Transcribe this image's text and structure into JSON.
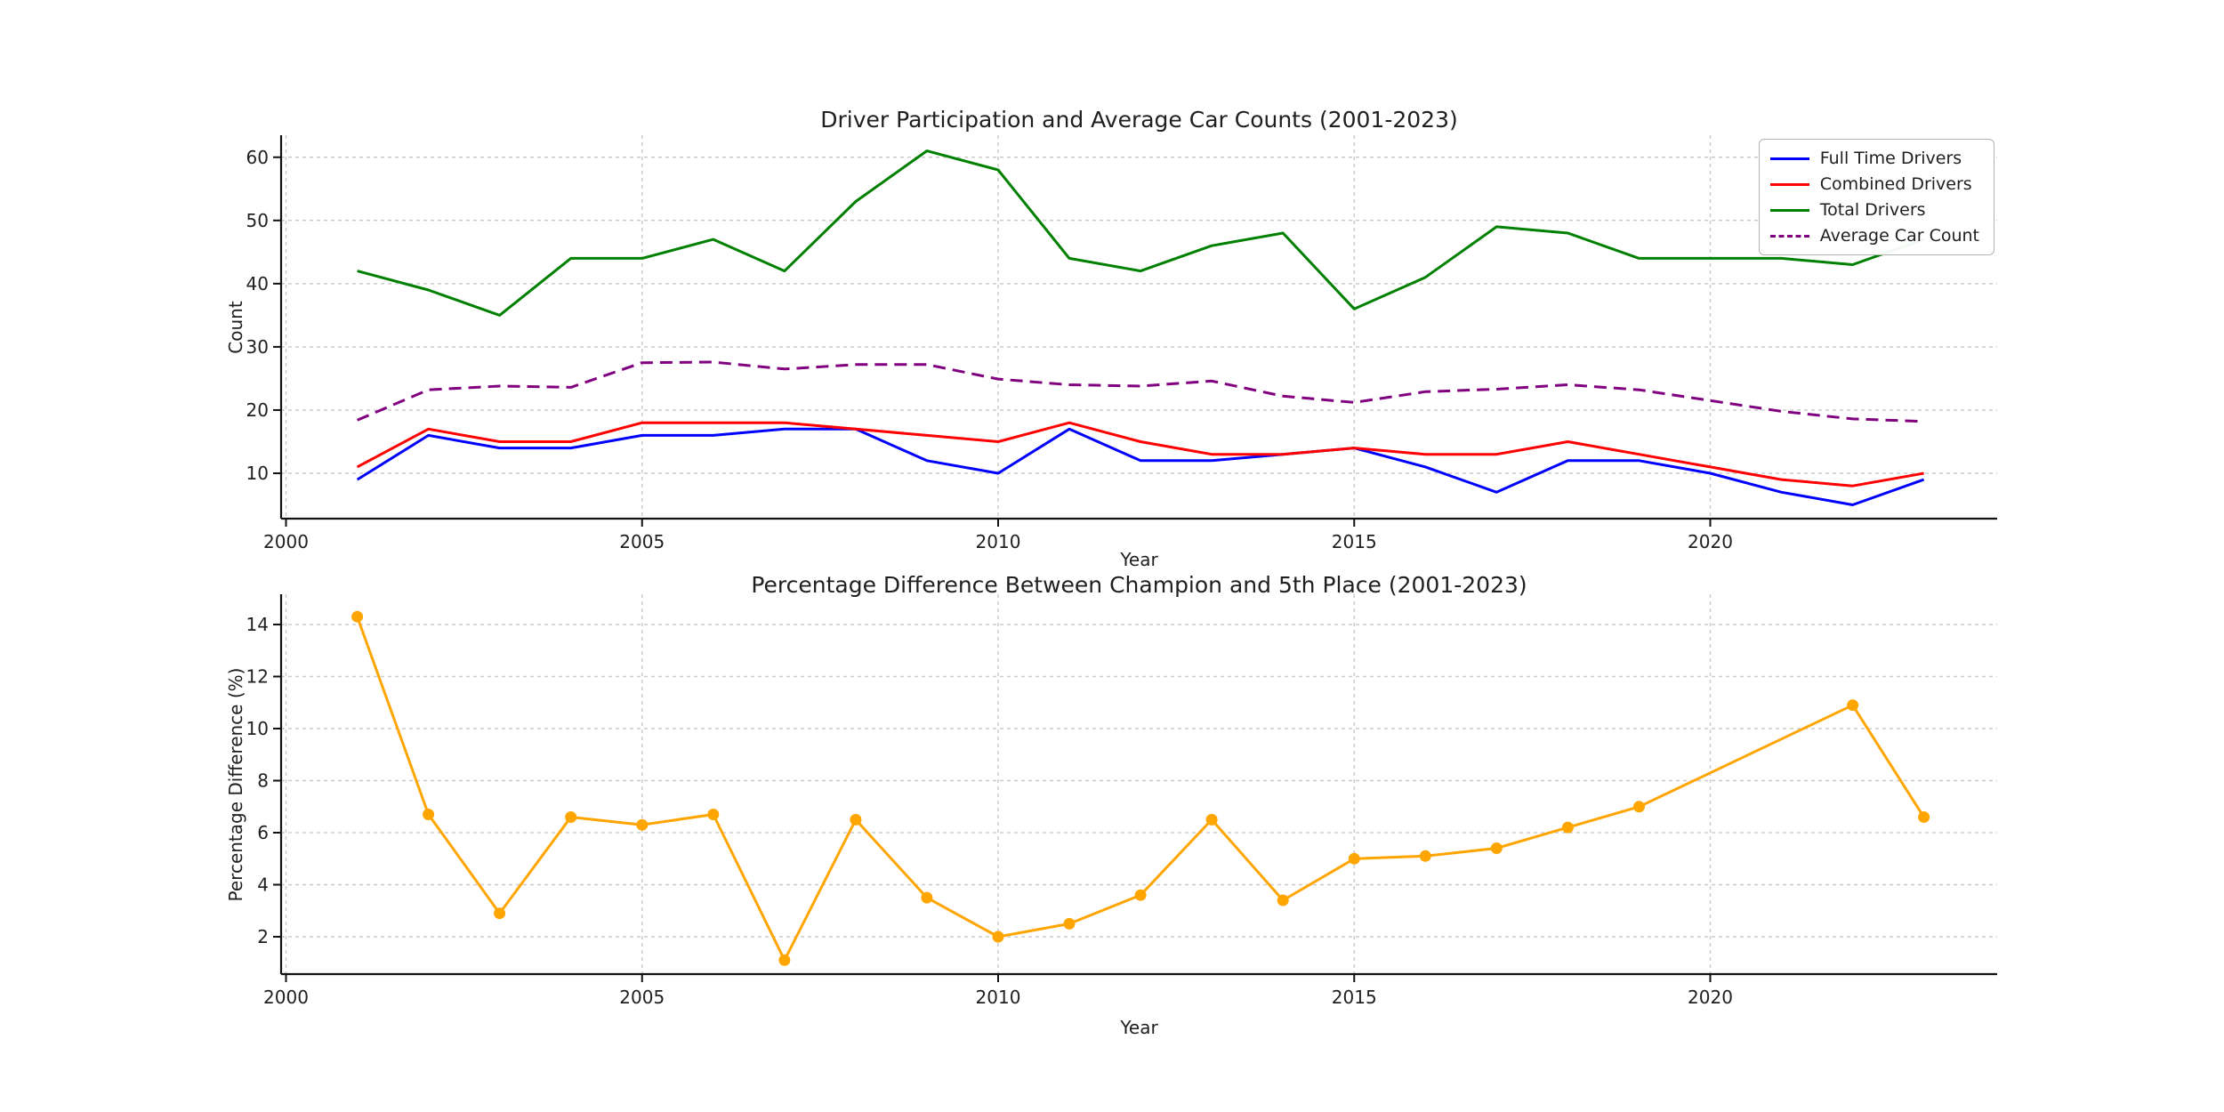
{
  "figure": {
    "background": "#ffffff",
    "grid_color": "#cccccc",
    "spine_color": "#111111"
  },
  "chart_data": [
    {
      "type": "line",
      "title": "Driver Participation and Average Car Counts (2001-2023)",
      "xlabel": "Year",
      "ylabel": "Count",
      "x_ticks": [
        2000,
        2005,
        2010,
        2015,
        2020
      ],
      "y_ticks": [
        10,
        20,
        30,
        40,
        50,
        60
      ],
      "xlim": [
        1999.9,
        2024.0
      ],
      "ylim": [
        2.8,
        63.5
      ],
      "grid": "on",
      "x": [
        2001,
        2002,
        2003,
        2004,
        2005,
        2006,
        2007,
        2008,
        2009,
        2010,
        2011,
        2012,
        2013,
        2014,
        2015,
        2016,
        2017,
        2018,
        2019,
        2020,
        2021,
        2022,
        2023
      ],
      "series": [
        {
          "name": "Full Time Drivers",
          "color": "#0000ff",
          "dash": "solid",
          "values": [
            9,
            16,
            14,
            14,
            16,
            16,
            17,
            17,
            12,
            10,
            17,
            12,
            12,
            13,
            14,
            11,
            7,
            12,
            12,
            10,
            7,
            5,
            9
          ]
        },
        {
          "name": "Combined Drivers",
          "color": "#ff0000",
          "dash": "solid",
          "values": [
            11,
            17,
            15,
            15,
            18,
            18,
            18,
            17,
            16,
            15,
            18,
            15,
            13,
            13,
            14,
            13,
            13,
            15,
            13,
            11,
            9,
            8,
            10
          ]
        },
        {
          "name": "Total Drivers",
          "color": "#008000",
          "dash": "solid",
          "values": [
            42,
            39,
            35,
            44,
            44,
            47,
            42,
            53,
            61,
            58,
            44,
            42,
            46,
            48,
            36,
            41,
            49,
            48,
            44,
            44,
            44,
            43,
            47
          ]
        },
        {
          "name": "Average Car Count",
          "color": "#800080",
          "dash": "dashed",
          "values": [
            18.4,
            23.2,
            23.8,
            23.6,
            27.5,
            27.6,
            26.5,
            27.2,
            27.2,
            24.9,
            24.0,
            23.8,
            24.6,
            22.2,
            21.2,
            22.9,
            23.3,
            24.0,
            23.2,
            21.5,
            19.8,
            18.6,
            18.2
          ]
        }
      ],
      "legend": {
        "position": "upper right",
        "entries": [
          "Full Time Drivers",
          "Combined Drivers",
          "Total Drivers",
          "Average Car Count"
        ]
      }
    },
    {
      "type": "line",
      "title": "Percentage Difference Between Champion and 5th Place (2001-2023)",
      "xlabel": "Year",
      "ylabel": "Percentage Difference (%)",
      "x_ticks": [
        2000,
        2005,
        2010,
        2015,
        2020
      ],
      "y_ticks": [
        2,
        4,
        6,
        8,
        10,
        12,
        14
      ],
      "xlim": [
        1999.9,
        2024.0
      ],
      "ylim": [
        0.5,
        15.2
      ],
      "grid": "on",
      "series": [
        {
          "name": "Percentage Difference",
          "color": "#ffa500",
          "dash": "solid",
          "marker": "circle",
          "points": [
            [
              2001,
              14.3
            ],
            [
              2002,
              6.7
            ],
            [
              2003,
              2.9
            ],
            [
              2004,
              6.6
            ],
            [
              2005,
              6.3
            ],
            [
              2006,
              6.7
            ],
            [
              2007,
              1.1
            ],
            [
              2008,
              6.5
            ],
            [
              2009,
              3.5
            ],
            [
              2010,
              2.0
            ],
            [
              2011,
              2.5
            ],
            [
              2012,
              3.6
            ],
            [
              2013,
              6.5
            ],
            [
              2014,
              3.4
            ],
            [
              2015,
              5.0
            ],
            [
              2016,
              5.1
            ],
            [
              2017,
              5.4
            ],
            [
              2018,
              6.2
            ],
            [
              2019,
              7.0
            ],
            [
              2022,
              10.9
            ],
            [
              2023,
              6.6
            ]
          ]
        }
      ]
    }
  ]
}
